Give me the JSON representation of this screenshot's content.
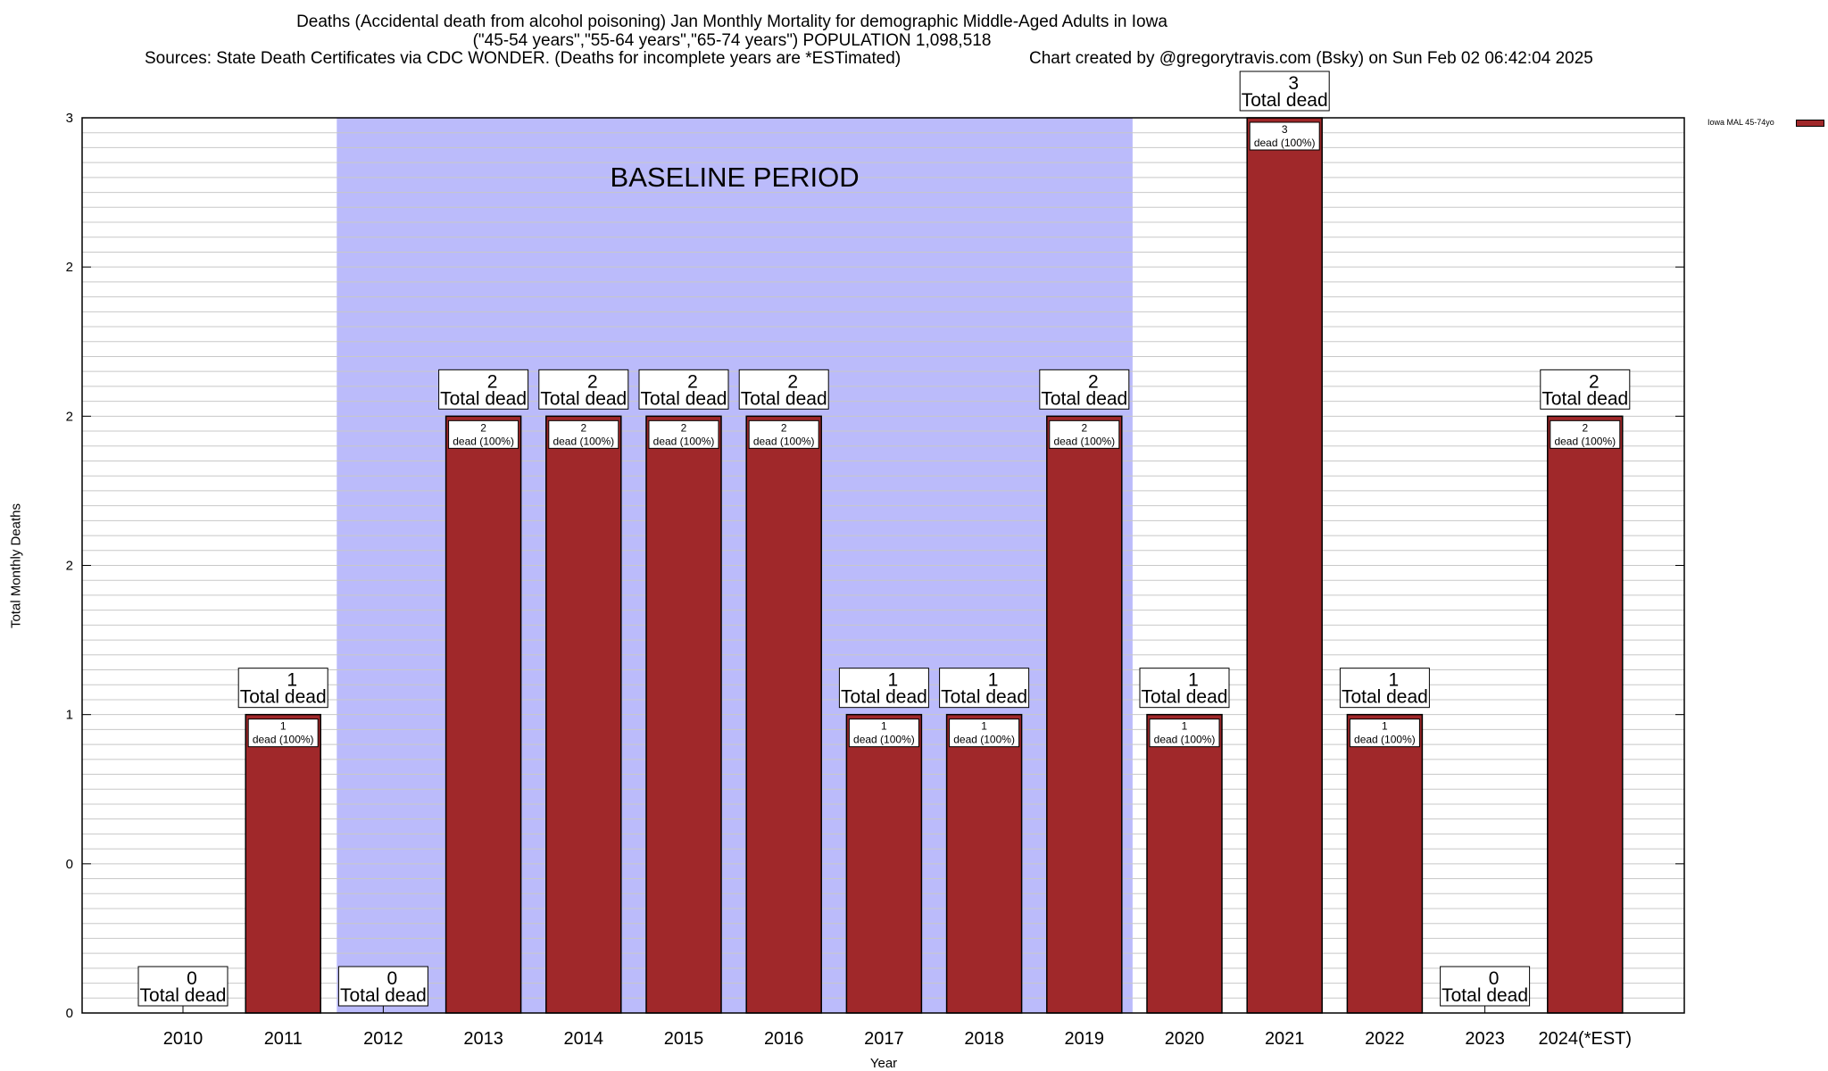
{
  "header": {
    "line1": "Deaths (Accidental death from alcohol poisoning) Jan Monthly Mortality for demographic Middle-Aged Adults in Iowa",
    "line2": "(\"45-54 years\",\"55-64 years\",\"65-74 years\") POPULATION 1,098,518",
    "line3_source": "Sources: State Death Certificates via CDC WONDER. (Deaths for incomplete years are *ESTimated)",
    "line3_credit": "Chart created by @gregorytravis.com (Bsky) on Sun Feb 02 06:42:04 2025"
  },
  "chart_data": {
    "type": "bar",
    "title": "Deaths (Accidental death from alcohol poisoning) Jan Monthly Mortality for demographic Middle-Aged Adults in Iowa",
    "xlabel": "Year",
    "ylabel": "Total Monthly Deaths",
    "ylim": [
      0,
      3
    ],
    "y_tick_labels": [
      "0",
      "0",
      "1",
      "2",
      "2",
      "2",
      "3"
    ],
    "y_tick_values": [
      0,
      0.5,
      1,
      1.5,
      2,
      2.5,
      3
    ],
    "grid": true,
    "legend_position": "top-right",
    "categories": [
      "2010",
      "2011",
      "2012",
      "2013",
      "2014",
      "2015",
      "2016",
      "2017",
      "2018",
      "2019",
      "2020",
      "2021",
      "2022",
      "2023",
      "2024(*EST)"
    ],
    "series": [
      {
        "name": "Iowa MAL 45-74yo",
        "color": "#a0282a",
        "values": [
          0,
          1,
          0,
          2,
          2,
          2,
          2,
          1,
          1,
          2,
          1,
          3,
          1,
          0,
          2
        ]
      }
    ],
    "total_label_suffix": "Total dead",
    "bar_label_suffix": "dead (100%)",
    "baseline": {
      "label": "BASELINE PERIOD",
      "start": "2012",
      "end": "2019",
      "color": "#bbbbfb"
    }
  }
}
